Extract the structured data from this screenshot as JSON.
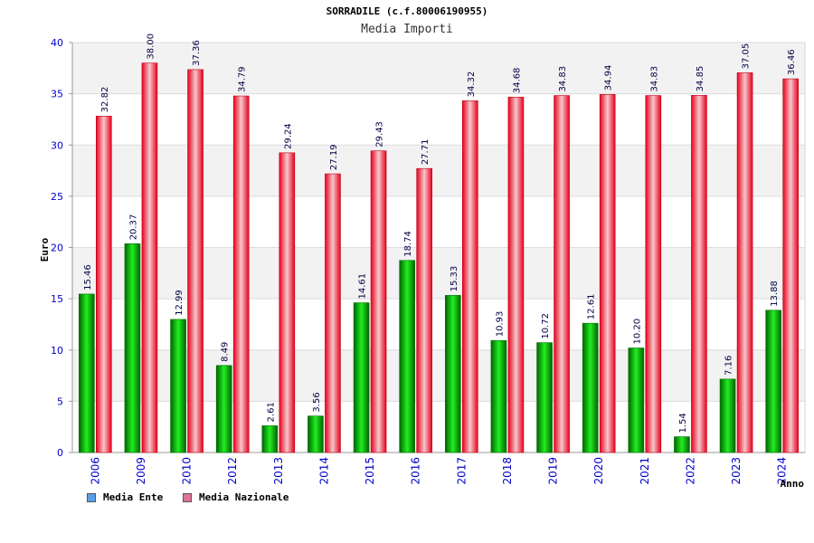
{
  "chart_data": {
    "type": "bar",
    "title": "SORRADILE (c.f.80006190955)",
    "subtitle": "Media Importi",
    "ylabel": "Euro",
    "xlabel": "Anno",
    "ylim": [
      0,
      40
    ],
    "yticks": [
      0,
      5,
      10,
      15,
      20,
      25,
      30,
      35,
      40
    ],
    "grid": true,
    "categories": [
      "2006",
      "2009",
      "2010",
      "2012",
      "2013",
      "2014",
      "2015",
      "2016",
      "2017",
      "2018",
      "2019",
      "2020",
      "2021",
      "2022",
      "2023",
      "2024"
    ],
    "series": [
      {
        "name": "Media Ente",
        "values": [
          15.46,
          20.37,
          12.99,
          8.49,
          2.61,
          3.56,
          14.61,
          18.74,
          15.33,
          10.93,
          10.72,
          12.61,
          10.2,
          1.54,
          7.16,
          13.88
        ],
        "labels": [
          "15.46",
          "20.37",
          "12.99",
          "8.49",
          "2.61",
          "3.56",
          "14.61",
          "18.74",
          "15.33",
          "10.93",
          "10.72",
          "12.61",
          "10.20",
          "1.54",
          "7.16",
          "13.88"
        ],
        "color": "#00a000"
      },
      {
        "name": "Media Nazionale",
        "values": [
          32.82,
          38.0,
          37.36,
          34.79,
          29.24,
          27.19,
          29.43,
          27.71,
          34.32,
          34.68,
          34.83,
          34.94,
          34.83,
          34.85,
          37.05,
          36.46
        ],
        "labels": [
          "32.82",
          "38.00",
          "37.36",
          "34.79",
          "29.24",
          "27.19",
          "29.43",
          "27.71",
          "34.32",
          "34.68",
          "34.83",
          "34.94",
          "34.83",
          "34.85",
          "37.05",
          "36.46"
        ],
        "color": "#e8001c"
      }
    ],
    "legend": {
      "position": "bottom-left",
      "items": [
        {
          "label": "Media Ente",
          "color": "#5aa0e6"
        },
        {
          "label": "Media Nazionale",
          "color": "#e0709a"
        }
      ]
    }
  }
}
